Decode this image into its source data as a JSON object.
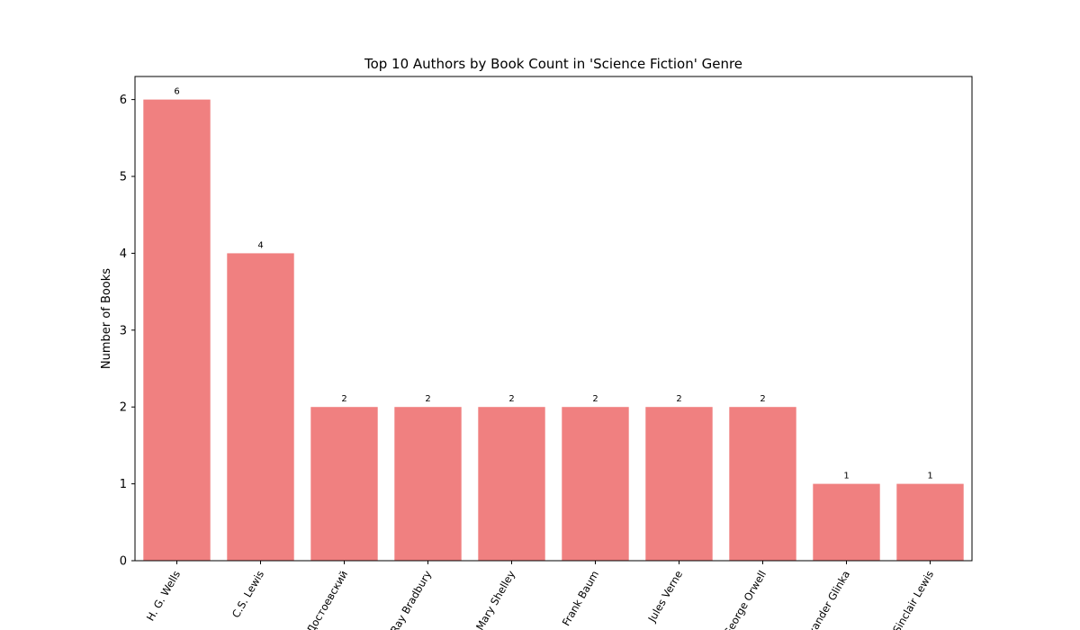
{
  "chart_data": {
    "type": "bar",
    "title": "Top 10 Authors by Book Count in 'Science Fiction' Genre",
    "xlabel": "",
    "ylabel": "Number of Books",
    "categories": [
      "H. G. Wells",
      "C.S. Lewis",
      "Достоевский",
      "Ray Bradbury",
      "Mary Shelley",
      "L. Frank Baum",
      "Jules Verne",
      "George Orwell",
      "Alexander Glinka",
      "Sinclair Lewis"
    ],
    "values": [
      6,
      4,
      2,
      2,
      2,
      2,
      2,
      2,
      1,
      1
    ],
    "ylim": [
      0,
      6.3
    ],
    "yticks": [
      0,
      1,
      2,
      3,
      4,
      5,
      6
    ],
    "bar_color": "#f08080",
    "grid": false,
    "show_value_labels": true
  }
}
